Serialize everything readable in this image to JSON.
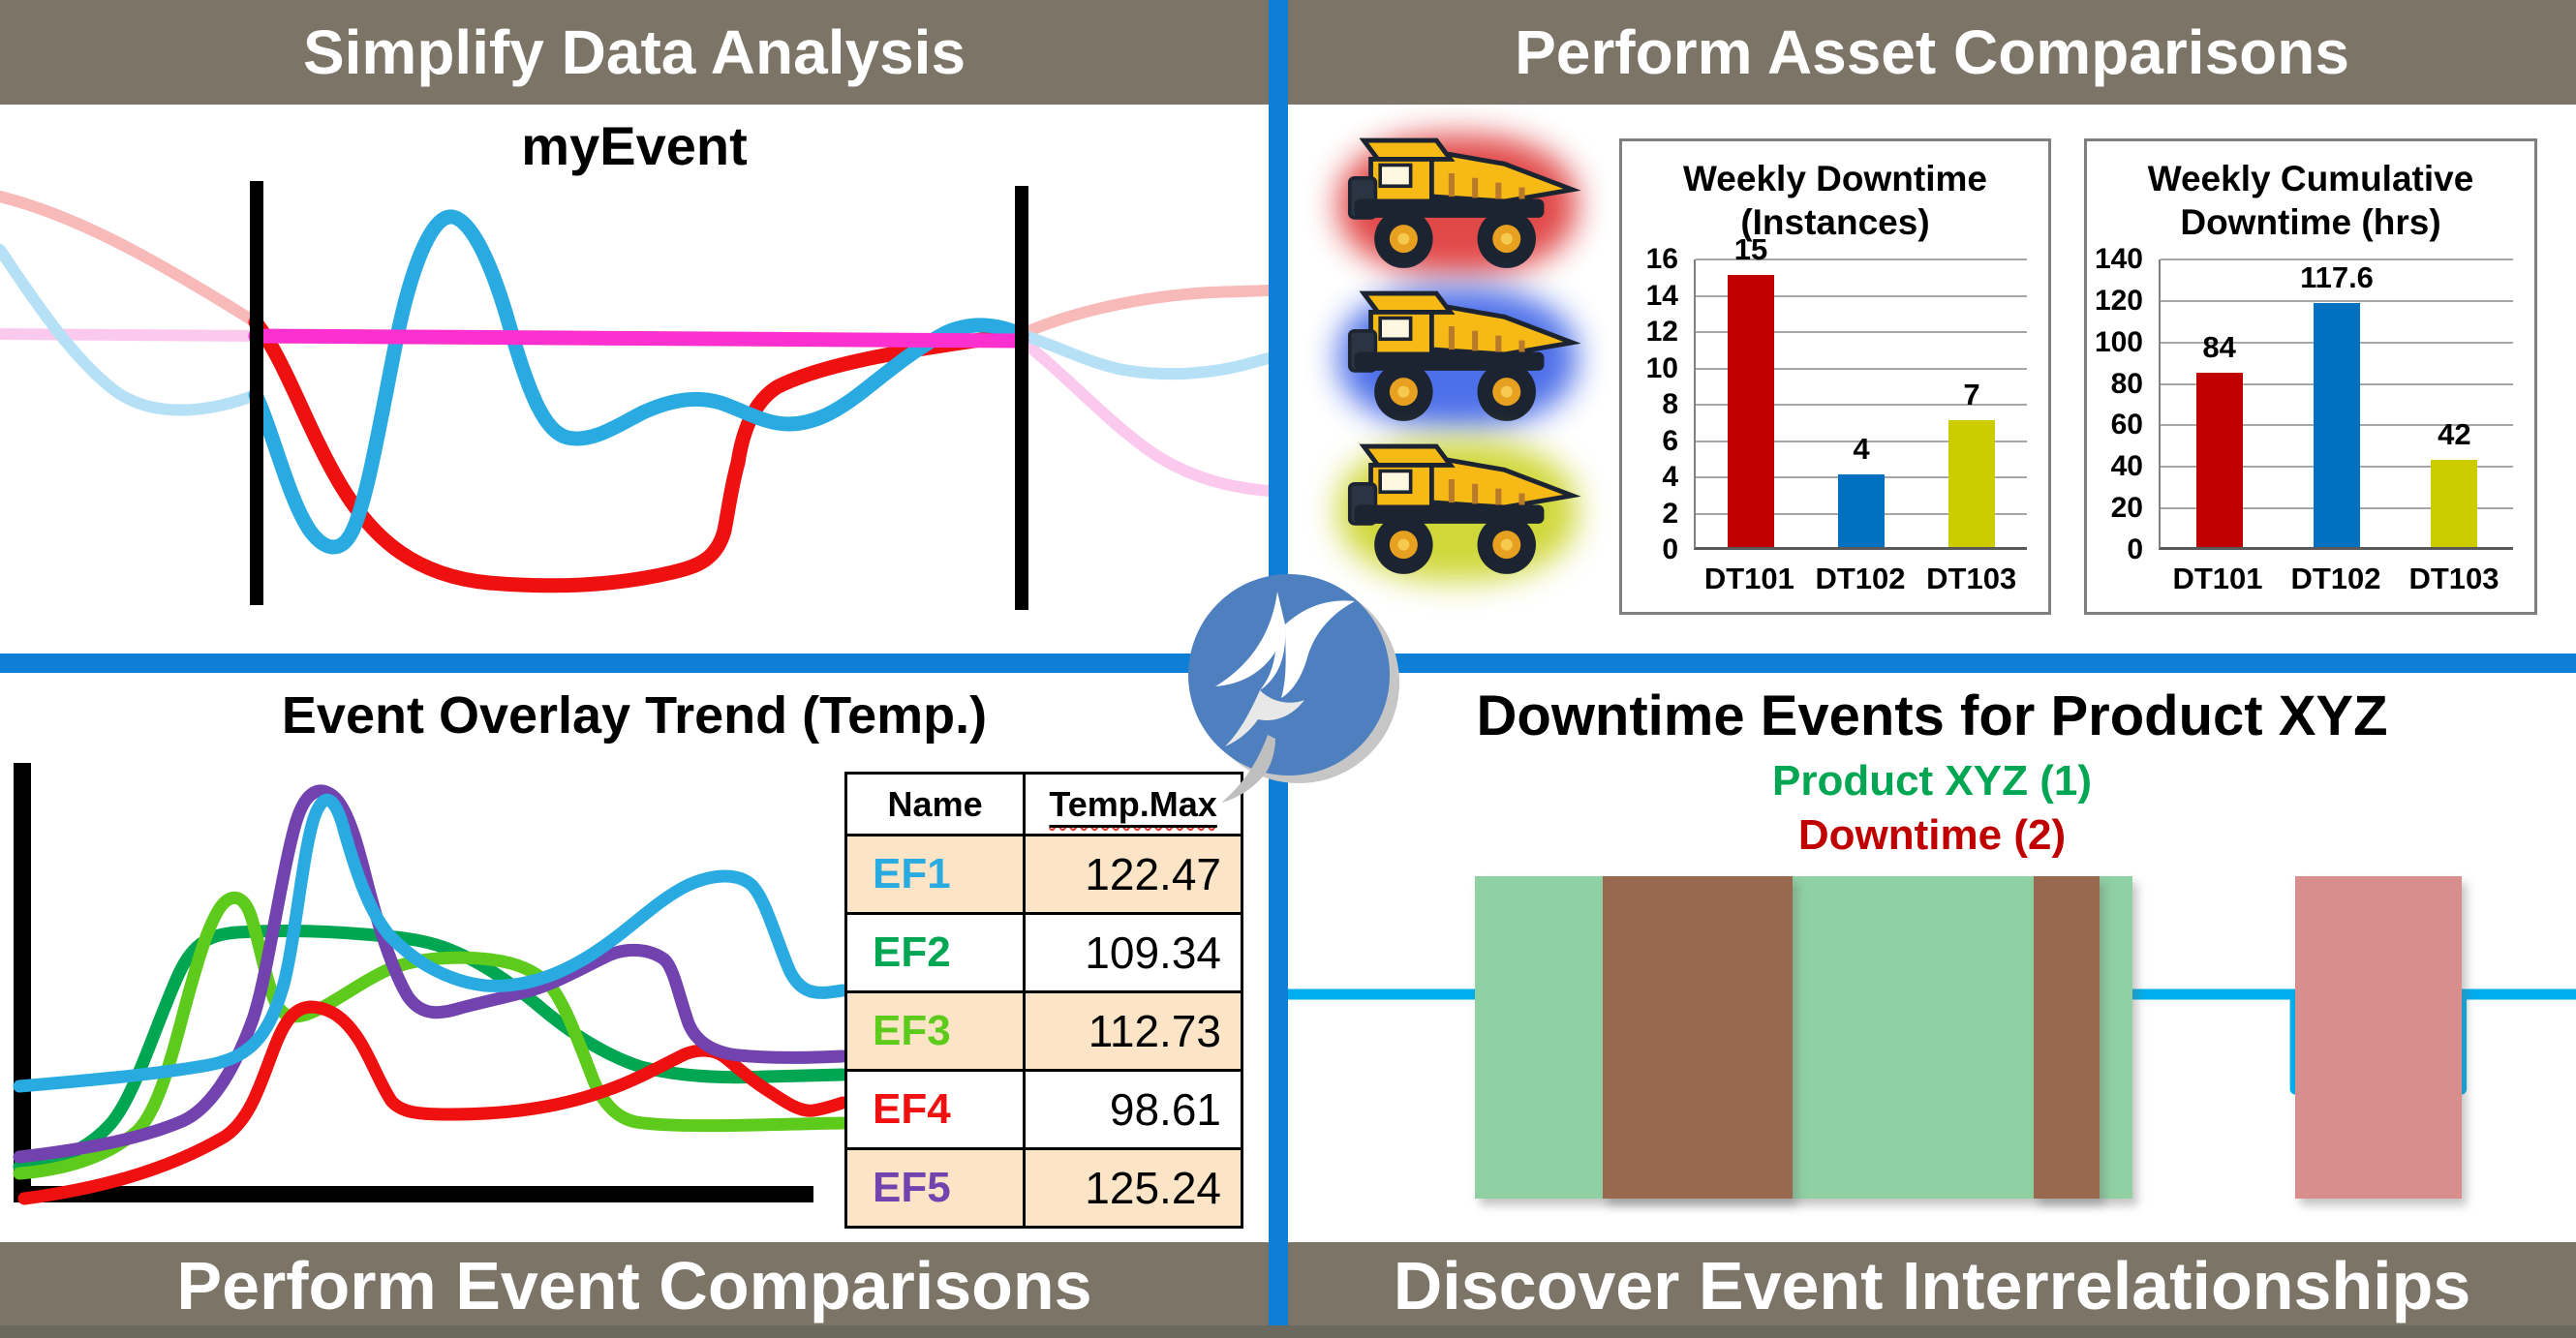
{
  "top_left": {
    "header": "Simplify Data Analysis",
    "chart_title": "myEvent",
    "series": [
      {
        "name": "red-signal",
        "color": "#EF1010",
        "faded_color": "#F8B9B9"
      },
      {
        "name": "blue-signal",
        "color": "#29ABE2",
        "faded_color": "#B5E0F6"
      },
      {
        "name": "magenta-signal",
        "color": "#FB30CF",
        "faded_color": "#FBC9EE"
      }
    ]
  },
  "top_right": {
    "header": "Perform Asset Comparisons",
    "assets": [
      {
        "icon": "dump-truck-icon",
        "glow": "#E04040"
      },
      {
        "icon": "dump-truck-icon",
        "glow": "#4468E8"
      },
      {
        "icon": "dump-truck-icon",
        "glow": "#CDD52F"
      }
    ]
  },
  "bottom_left": {
    "footer": "Perform Event Comparisons",
    "chart_title": "Event Overlay Trend (Temp.)",
    "table": {
      "headers": [
        "Name",
        "Temp.Max"
      ],
      "rows": [
        {
          "name": "EF1",
          "value": "122.47",
          "color": "#29ABE2"
        },
        {
          "name": "EF2",
          "value": "109.34",
          "color": "#00A651"
        },
        {
          "name": "EF3",
          "value": "112.73",
          "color": "#5ECB1C"
        },
        {
          "name": "EF4",
          "value": "98.61",
          "color": "#EF1010"
        },
        {
          "name": "EF5",
          "value": "125.24",
          "color": "#7243AE"
        }
      ]
    }
  },
  "bottom_right": {
    "footer": "Discover Event Interrelationships",
    "chart_title": "Downtime Events for Product XYZ",
    "legend": [
      {
        "label": "Product XYZ (1)",
        "color": "#00A651"
      },
      {
        "label": "Downtime  (2)",
        "color": "#C00000"
      }
    ]
  },
  "chart_data": [
    {
      "type": "line",
      "title": "myEvent",
      "axes_visible": false,
      "annotations": [
        "event-start-marker",
        "event-end-marker"
      ],
      "series": [
        {
          "name": "red-signal",
          "color": "#EF1010"
        },
        {
          "name": "blue-signal",
          "color": "#29ABE2"
        },
        {
          "name": "magenta-signal",
          "color": "#FB30CF"
        }
      ],
      "note": "signals drawn faded outside the event window between the two black markers"
    },
    {
      "type": "bar",
      "title": "Weekly Downtime (Instances)",
      "title_lines": [
        "Weekly Downtime",
        "(Instances)"
      ],
      "categories": [
        "DT101",
        "DT102",
        "DT103"
      ],
      "values": [
        15,
        4,
        7
      ],
      "value_labels": [
        "15",
        "4",
        "7"
      ],
      "bar_colors": [
        "#C00000",
        "#0070C0",
        "#CCCC00"
      ],
      "ylim": [
        0,
        16
      ],
      "ytick": 2,
      "grid": true
    },
    {
      "type": "bar",
      "title": "Weekly Cumulative Downtime (hrs)",
      "title_lines": [
        "Weekly Cumulative",
        "Downtime (hrs)"
      ],
      "categories": [
        "DT101",
        "DT102",
        "DT103"
      ],
      "values": [
        84,
        117.6,
        42
      ],
      "value_labels": [
        "84",
        "117.6",
        "42"
      ],
      "bar_colors": [
        "#C00000",
        "#0070C0",
        "#CCCC00"
      ],
      "ylim": [
        0,
        140
      ],
      "ytick": 20,
      "grid": true
    },
    {
      "type": "line",
      "title": "Event Overlay Trend (Temp.)",
      "axes_visible": true,
      "tick_labels": false,
      "series": [
        {
          "name": "EF1",
          "color": "#29ABE2",
          "temp_max": 122.47
        },
        {
          "name": "EF2",
          "color": "#00A651",
          "temp_max": 109.34
        },
        {
          "name": "EF3",
          "color": "#5ECB1C",
          "temp_max": 112.73
        },
        {
          "name": "EF4",
          "color": "#EF1010",
          "temp_max": 98.61
        },
        {
          "name": "EF5",
          "color": "#7243AE",
          "temp_max": 125.24
        }
      ]
    },
    {
      "type": "area",
      "title": "Downtime Events for Product XYZ",
      "line_color": "#00AEEF",
      "series": [
        {
          "name": "Product XYZ",
          "state_id": "(1)",
          "fill": "#8FD1A2",
          "intervals": [
            [
              0.145,
              0.656
            ]
          ]
        },
        {
          "name": "Downtime",
          "state_id": "(2)",
          "fill": "#D78E8D",
          "overlap_fill": "#98684F",
          "intervals": [
            [
              0.244,
              0.392
            ],
            [
              0.579,
              0.63
            ],
            [
              0.782,
              0.911
            ]
          ]
        }
      ],
      "step_edges": [
        [
          0.2406,
          "down"
        ],
        [
          0.3917,
          "up"
        ],
        [
          0.579,
          "down"
        ],
        [
          0.63,
          "up"
        ],
        [
          0.782,
          "down"
        ],
        [
          0.911,
          "up"
        ]
      ]
    }
  ]
}
